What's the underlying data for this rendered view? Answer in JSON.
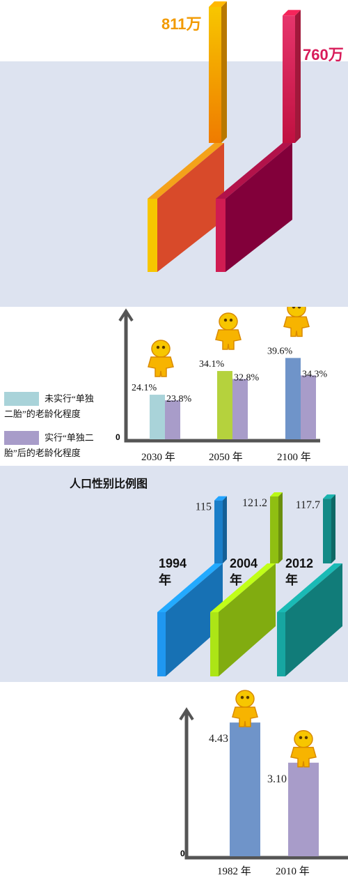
{
  "chart_data": [
    {
      "type": "bar",
      "categories": [
        "",
        ""
      ],
      "series": [
        {
          "values": [
            811,
            760
          ]
        }
      ],
      "value_labels": [
        "811万",
        "760万"
      ],
      "colors": [
        "#f5a000",
        "#d6204f"
      ]
    },
    {
      "type": "bar",
      "categories": [
        "2030 年",
        "2050 年",
        "2100 年"
      ],
      "series": [
        {
          "name": "未实行“单独二胎”的老龄化程度",
          "values": [
            24.1,
            34.1,
            39.6
          ],
          "labels": [
            "24.1%",
            "34.1%",
            "39.6%"
          ]
        },
        {
          "name": "实行“单独二胎”后的老龄化程度",
          "values": [
            23.8,
            32.8,
            34.3
          ],
          "labels": [
            "23.8%",
            "32.8%",
            "34.3%"
          ]
        }
      ],
      "series1_colors": [
        "#a9d3d9",
        "#b5d23d",
        "#6f94c9"
      ],
      "series2_color": "#a89cc9",
      "ytick_zero": "0"
    },
    {
      "type": "bar",
      "title": "人口性别比例图",
      "categories": [
        "1994\n年",
        "2004\n年",
        "2012\n年"
      ],
      "category_labels": [
        [
          "1994",
          "年"
        ],
        [
          "2004",
          "年"
        ],
        [
          "2012",
          "年"
        ]
      ],
      "values": [
        115,
        121.2,
        117.7
      ],
      "value_labels": [
        "115",
        "121.2",
        "117.7"
      ],
      "colors": [
        "#1a7ec8",
        "#8fbf12",
        "#138a86"
      ]
    },
    {
      "type": "bar",
      "categories": [
        "1982 年",
        "2010 年"
      ],
      "values": [
        4.43,
        3.1
      ],
      "value_labels": [
        "4.43",
        "3.10"
      ],
      "colors": [
        "#6f94c9",
        "#a89cc9"
      ],
      "ytick_zero": "0"
    }
  ],
  "legend": {
    "item1_line1": "未实行“单独",
    "item1_line2": "二胎”的老龄化程度",
    "item2_line1": "实行“单独二",
    "item2_line2": "胎”后的老龄化程度"
  },
  "icons": [
    "person-figure-icon"
  ]
}
